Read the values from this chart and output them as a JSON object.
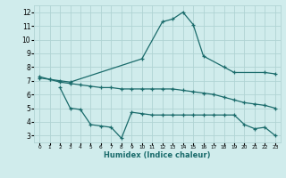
{
  "xlabel": "Humidex (Indice chaleur)",
  "bg_color": "#d0ecec",
  "grid_color": "#b0d4d4",
  "line_color": "#1a6b6b",
  "xlim": [
    -0.5,
    23.5
  ],
  "ylim": [
    2.5,
    12.5
  ],
  "yticks": [
    3,
    4,
    5,
    6,
    7,
    8,
    9,
    10,
    11,
    12
  ],
  "xticks": [
    0,
    1,
    2,
    3,
    4,
    5,
    6,
    7,
    8,
    9,
    10,
    11,
    12,
    13,
    14,
    15,
    16,
    17,
    18,
    19,
    20,
    21,
    22,
    23
  ],
  "line1_x": [
    0,
    1,
    2,
    3,
    10,
    12,
    13,
    14,
    15,
    16,
    18,
    19,
    22,
    23
  ],
  "line1_y": [
    7.3,
    7.1,
    7.0,
    6.9,
    8.6,
    11.3,
    11.5,
    12.0,
    11.1,
    8.8,
    8.0,
    7.6,
    7.6,
    7.5
  ],
  "line2_x": [
    0,
    1,
    2,
    3,
    4,
    5,
    6,
    7,
    8,
    9,
    10,
    11,
    12,
    13,
    14,
    15,
    16,
    17,
    18,
    19,
    20,
    21,
    22,
    23
  ],
  "line2_y": [
    7.2,
    7.1,
    6.9,
    6.8,
    6.7,
    6.6,
    6.5,
    6.5,
    6.4,
    6.4,
    6.4,
    6.4,
    6.4,
    6.4,
    6.3,
    6.2,
    6.1,
    6.0,
    5.8,
    5.6,
    5.4,
    5.3,
    5.2,
    5.0
  ],
  "line3_x": [
    2,
    3,
    4,
    5,
    6,
    7,
    8,
    9,
    10,
    11,
    12,
    13,
    14,
    15,
    16,
    17,
    18,
    19,
    20,
    21,
    22,
    23
  ],
  "line3_y": [
    6.5,
    5.0,
    4.9,
    3.8,
    3.7,
    3.6,
    2.8,
    4.7,
    4.6,
    4.5,
    4.5,
    4.5,
    4.5,
    4.5,
    4.5,
    4.5,
    4.5,
    4.5,
    3.8,
    3.5,
    3.6,
    3.0
  ]
}
